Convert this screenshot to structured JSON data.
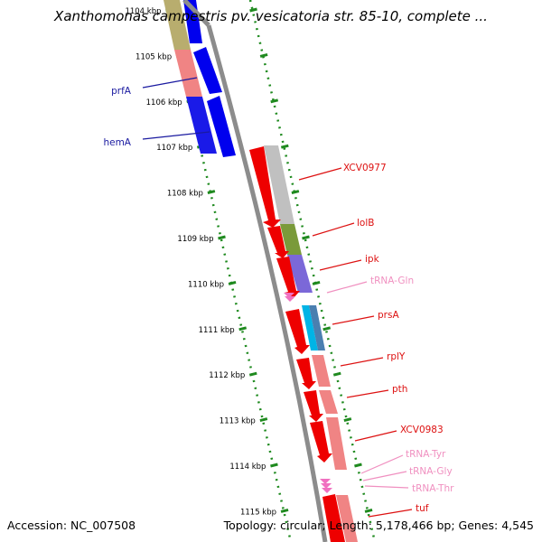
{
  "title": "Xanthomonas campestris pv. vesicatoria str. 85-10, complete ...",
  "footer": {
    "accession": "Accession: NC_007508",
    "summary": "Topology: circular; Length: 5,178,466 bp; Genes: 4,545"
  },
  "colors": {
    "ruler_dots": "#1f8a1f",
    "backbone": "#8c8c8c",
    "left_gene_label": "#1a1aa0",
    "right_gene_label": "#dd1111",
    "trna_label": "#f090c0",
    "blue_gene": "#0000ee",
    "red_gene": "#ee0000"
  },
  "ticks": [
    {
      "kbp": 1104,
      "label": "1104 kbp"
    },
    {
      "kbp": 1105,
      "label": "1105 kbp"
    },
    {
      "kbp": 1106,
      "label": "1106 kbp"
    },
    {
      "kbp": 1107,
      "label": "1107 kbp"
    },
    {
      "kbp": 1108,
      "label": "1108 kbp"
    },
    {
      "kbp": 1109,
      "label": "1109 kbp"
    },
    {
      "kbp": 1110,
      "label": "1110 kbp"
    },
    {
      "kbp": 1111,
      "label": "1111 kbp"
    },
    {
      "kbp": 1112,
      "label": "1112 kbp"
    },
    {
      "kbp": 1113,
      "label": "1113 kbp"
    },
    {
      "kbp": 1114,
      "label": "1114 kbp"
    },
    {
      "kbp": 1115,
      "label": "1115 kbp"
    }
  ],
  "left_labels": [
    {
      "name": "prfA"
    },
    {
      "name": "hemA"
    }
  ],
  "right_labels": [
    {
      "name": "XCV0977",
      "type": "gene"
    },
    {
      "name": "lolB",
      "type": "gene"
    },
    {
      "name": "ipk",
      "type": "gene"
    },
    {
      "name": "tRNA-Gln",
      "type": "trna"
    },
    {
      "name": "prsA",
      "type": "gene"
    },
    {
      "name": "rplY",
      "type": "gene"
    },
    {
      "name": "pth",
      "type": "gene"
    },
    {
      "name": "XCV0983",
      "type": "gene"
    },
    {
      "name": "tRNA-Tyr",
      "type": "trna"
    },
    {
      "name": "tRNA-Gly",
      "type": "trna"
    },
    {
      "name": "tRNA-Thr",
      "type": "trna"
    },
    {
      "name": "tuf",
      "type": "gene"
    }
  ]
}
